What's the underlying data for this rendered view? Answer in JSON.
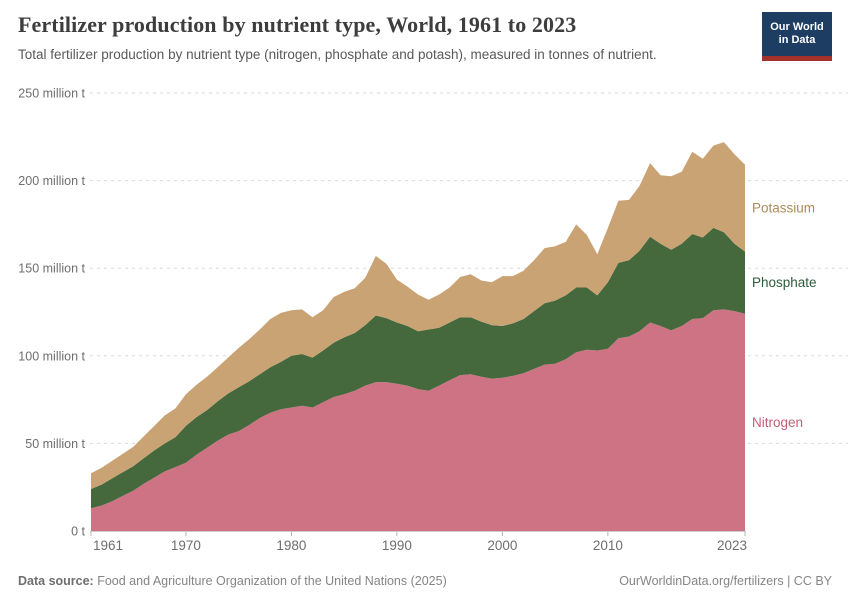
{
  "header": {
    "title": "Fertilizer production by nutrient type, World, 1961 to 2023",
    "subtitle": "Total fertilizer production by nutrient type (nitrogen, phosphate and potash), measured in tonnes of nutrient.",
    "logo": {
      "line1": "Our World",
      "line2": "in Data",
      "bg_color": "#1d3d63",
      "bar_color": "#a5312b"
    }
  },
  "chart_data": {
    "type": "area",
    "stacked": true,
    "title": "Fertilizer production by nutrient type, World, 1961 to 2023",
    "unit": "million tonnes of nutrient",
    "xlabel": "",
    "ylabel": "",
    "ylim": [
      0,
      250
    ],
    "grid": "horizontal-dashed",
    "legend_position": "right-of-plot",
    "x": [
      1961,
      1962,
      1963,
      1964,
      1965,
      1966,
      1967,
      1968,
      1969,
      1970,
      1971,
      1972,
      1973,
      1974,
      1975,
      1976,
      1977,
      1978,
      1979,
      1980,
      1981,
      1982,
      1983,
      1984,
      1985,
      1986,
      1987,
      1988,
      1989,
      1990,
      1991,
      1992,
      1993,
      1994,
      1995,
      1996,
      1997,
      1998,
      1999,
      2000,
      2001,
      2002,
      2003,
      2004,
      2005,
      2006,
      2007,
      2008,
      2009,
      2010,
      2011,
      2012,
      2013,
      2014,
      2015,
      2016,
      2017,
      2018,
      2019,
      2020,
      2021,
      2022,
      2023
    ],
    "series": [
      {
        "name": "Nitrogen",
        "color": "#ce7384",
        "label_color": "#c35c77",
        "values": [
          13,
          14.5,
          17,
          20,
          23,
          27,
          30.5,
          34,
          36.5,
          39,
          43.5,
          47.5,
          51.5,
          55,
          57,
          60.5,
          64.5,
          67.5,
          69.5,
          70.5,
          71.5,
          70.5,
          73.5,
          76.5,
          78,
          80,
          83,
          85,
          85,
          84,
          83,
          81,
          80,
          83,
          86,
          89,
          89.5,
          88,
          87,
          87.5,
          88.5,
          90,
          92.5,
          95,
          95.5,
          98,
          102,
          103.5,
          103,
          104,
          110,
          111,
          114,
          119,
          117,
          114.5,
          117,
          121,
          121.5,
          126,
          126.5,
          125.5,
          124
        ]
      },
      {
        "name": "Phosphate",
        "color": "#45683c",
        "label_color": "#2e5a3c",
        "values": [
          11,
          12,
          13,
          13.5,
          14,
          14.5,
          15.5,
          16,
          17,
          21,
          21.5,
          21.5,
          22.5,
          23.5,
          25,
          25,
          25,
          26,
          27,
          29.5,
          29.5,
          28.5,
          29.5,
          31,
          32.5,
          33,
          34.5,
          38,
          36.5,
          35,
          34,
          33,
          35,
          33,
          33,
          33,
          32.5,
          31.5,
          30.5,
          29.5,
          30,
          31,
          33,
          35,
          36,
          36.5,
          37,
          35.5,
          31.5,
          38,
          43,
          43.5,
          46,
          49,
          47,
          46,
          47,
          48.5,
          46,
          47,
          44,
          38.5,
          35.5
        ]
      },
      {
        "name": "Potassium",
        "color": "#c9a373",
        "label_color": "#ae8a5b",
        "values": [
          9,
          9.5,
          10,
          10.5,
          11,
          12.5,
          14,
          16,
          16.5,
          18,
          18.5,
          19,
          19.5,
          20.5,
          22.5,
          24,
          25.5,
          27.5,
          28,
          26,
          25.5,
          23,
          23,
          26,
          26,
          25.5,
          27,
          34,
          31,
          24.5,
          22.5,
          21,
          17,
          19,
          20,
          23,
          24.5,
          23.5,
          24.5,
          28.5,
          27,
          27.5,
          29,
          31.5,
          31,
          30.5,
          36,
          30,
          23.5,
          31,
          35.5,
          34.5,
          37,
          42,
          39,
          42,
          41,
          47,
          45,
          47,
          51.5,
          51,
          49.5
        ]
      }
    ],
    "yticks": [
      {
        "value": 0,
        "label": "0 t"
      },
      {
        "value": 50,
        "label": "50 million t"
      },
      {
        "value": 100,
        "label": "100 million t"
      },
      {
        "value": 150,
        "label": "150 million t"
      },
      {
        "value": 200,
        "label": "200 million t"
      },
      {
        "value": 250,
        "label": "250 million t"
      }
    ],
    "xticks": [
      1961,
      1970,
      1980,
      1990,
      2000,
      2010,
      2023
    ]
  },
  "footer": {
    "datasource_label": "Data source:",
    "datasource": "Food and Agriculture Organization of the United Nations (2025)",
    "link": "OurWorldinData.org/fertilizers",
    "separator": " | ",
    "license": "CC BY"
  }
}
